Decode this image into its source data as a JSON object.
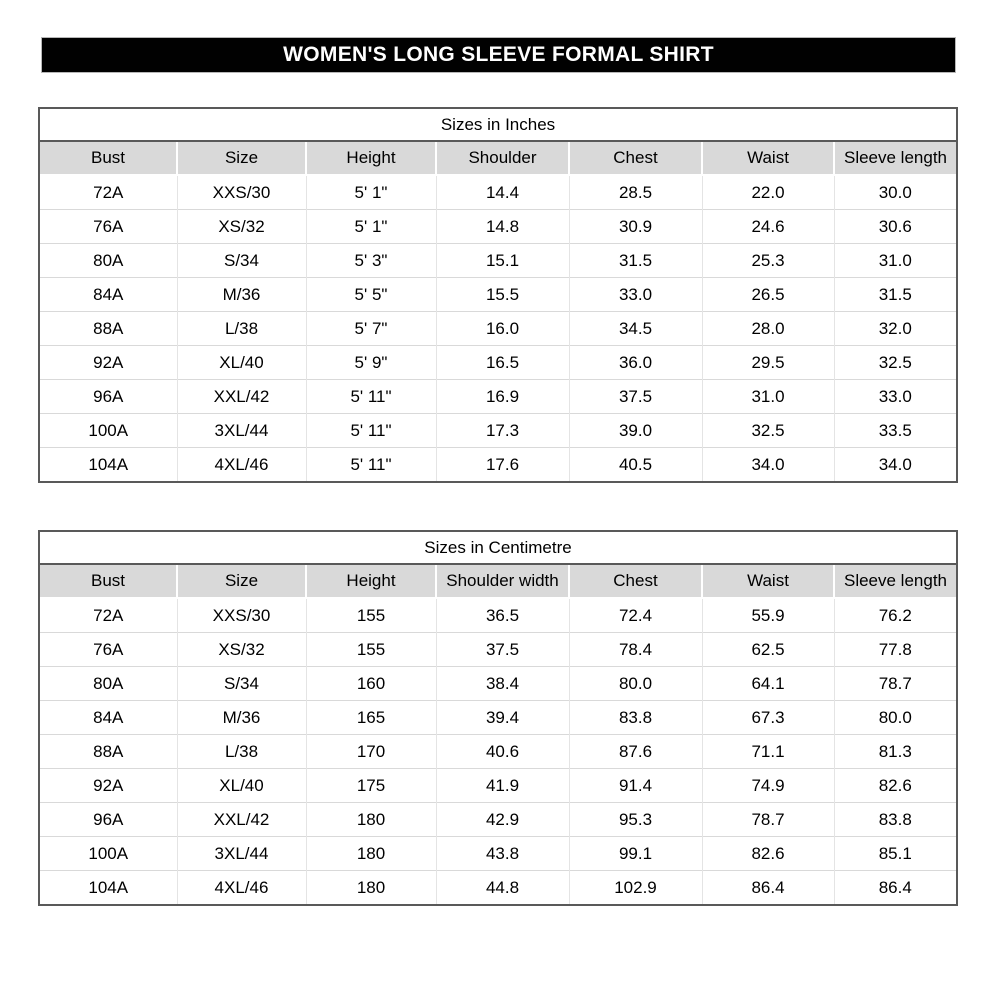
{
  "page_title": "WOMEN'S LONG SLEEVE FORMAL SHIRT",
  "colors": {
    "banner_background": "#010101",
    "banner_text": "#ffffff",
    "table_border": "#595959",
    "header_row_background": "#d9d9d9",
    "gridline": "#d9d9d9",
    "text": "#000000",
    "page_background": "#ffffff"
  },
  "tables": [
    {
      "title": "Sizes in Inches",
      "columns": [
        "Bust",
        "Size",
        "Height",
        "Shoulder",
        "Chest",
        "Waist",
        "Sleeve length"
      ],
      "rows": [
        [
          "72A",
          "XXS/30",
          "5' 1\"",
          "14.4",
          "28.5",
          "22.0",
          "30.0"
        ],
        [
          "76A",
          "XS/32",
          "5' 1\"",
          "14.8",
          "30.9",
          "24.6",
          "30.6"
        ],
        [
          "80A",
          "S/34",
          "5' 3\"",
          "15.1",
          "31.5",
          "25.3",
          "31.0"
        ],
        [
          "84A",
          "M/36",
          "5' 5\"",
          "15.5",
          "33.0",
          "26.5",
          "31.5"
        ],
        [
          "88A",
          "L/38",
          "5' 7\"",
          "16.0",
          "34.5",
          "28.0",
          "32.0"
        ],
        [
          "92A",
          "XL/40",
          "5' 9\"",
          "16.5",
          "36.0",
          "29.5",
          "32.5"
        ],
        [
          "96A",
          "XXL/42",
          "5' 11\"",
          "16.9",
          "37.5",
          "31.0",
          "33.0"
        ],
        [
          "100A",
          "3XL/44",
          "5' 11\"",
          "17.3",
          "39.0",
          "32.5",
          "33.5"
        ],
        [
          "104A",
          "4XL/46",
          "5' 11\"",
          "17.6",
          "40.5",
          "34.0",
          "34.0"
        ]
      ]
    },
    {
      "title": "Sizes in Centimetre",
      "columns": [
        "Bust",
        "Size",
        "Height",
        "Shoulder width",
        "Chest",
        "Waist",
        "Sleeve length"
      ],
      "rows": [
        [
          "72A",
          "XXS/30",
          "155",
          "36.5",
          "72.4",
          "55.9",
          "76.2"
        ],
        [
          "76A",
          "XS/32",
          "155",
          "37.5",
          "78.4",
          "62.5",
          "77.8"
        ],
        [
          "80A",
          "S/34",
          "160",
          "38.4",
          "80.0",
          "64.1",
          "78.7"
        ],
        [
          "84A",
          "M/36",
          "165",
          "39.4",
          "83.8",
          "67.3",
          "80.0"
        ],
        [
          "88A",
          "L/38",
          "170",
          "40.6",
          "87.6",
          "71.1",
          "81.3"
        ],
        [
          "92A",
          "XL/40",
          "175",
          "41.9",
          "91.4",
          "74.9",
          "82.6"
        ],
        [
          "96A",
          "XXL/42",
          "180",
          "42.9",
          "95.3",
          "78.7",
          "83.8"
        ],
        [
          "100A",
          "3XL/44",
          "180",
          "43.8",
          "99.1",
          "82.6",
          "85.1"
        ],
        [
          "104A",
          "4XL/46",
          "180",
          "44.8",
          "102.9",
          "86.4",
          "86.4"
        ]
      ]
    }
  ]
}
